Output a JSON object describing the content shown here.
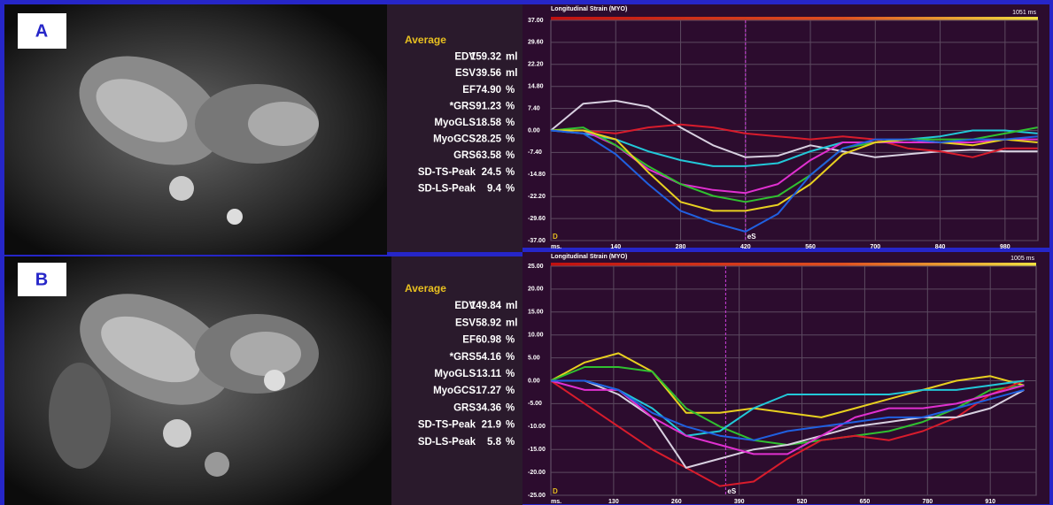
{
  "panels": [
    {
      "label": "A",
      "table": {
        "title": "Average",
        "rows": [
          [
            "EDV",
            "159.32",
            "ml"
          ],
          [
            "ESV",
            "39.56",
            "ml"
          ],
          [
            "EF",
            "74.90",
            "%"
          ],
          [
            "*GRS",
            "91.23",
            "%"
          ],
          [
            "MyoGLS",
            "-18.58",
            "%"
          ],
          [
            "MyoGCS",
            "-28.25",
            "%"
          ],
          [
            "GRS",
            "63.58",
            "%"
          ],
          [
            "SD-TS-Peak",
            "24.5",
            "%"
          ],
          [
            "SD-LS-Peak",
            "9.4",
            "%"
          ]
        ]
      }
    },
    {
      "label": "B",
      "table": {
        "title": "Average",
        "rows": [
          [
            "EDV",
            "149.84",
            "ml"
          ],
          [
            "ESV",
            "58.92",
            "ml"
          ],
          [
            "EF",
            "60.98",
            "%"
          ],
          [
            "*GRS",
            "54.16",
            "%"
          ],
          [
            "MyoGLS",
            "-13.11",
            "%"
          ],
          [
            "MyoGCS",
            "-17.27",
            "%"
          ],
          [
            "GRS",
            "34.36",
            "%"
          ],
          [
            "SD-TS-Peak",
            "21.9",
            "%"
          ],
          [
            "SD-LS-Peak",
            "5.8",
            "%"
          ]
        ]
      }
    }
  ],
  "chart_data": [
    {
      "type": "line",
      "title": "Longitudinal Strain (MYO)",
      "duration_label": "1051 ms",
      "x_unit": "ms.",
      "xlim": [
        0,
        1051
      ],
      "ylim": [
        -37,
        37
      ],
      "xticks": [
        140,
        280,
        420,
        560,
        700,
        840,
        980
      ],
      "yticks": [
        {
          "value": 37,
          "label": "37.00"
        },
        {
          "value": 29.6,
          "label": "29.60"
        },
        {
          "value": 22.2,
          "label": "22.20"
        },
        {
          "value": 14.8,
          "label": "14.80"
        },
        {
          "value": 7.4,
          "label": "7.40"
        },
        {
          "value": 0,
          "label": "0.00"
        },
        {
          "value": -7.4,
          "label": "-7.40"
        },
        {
          "value": -14.8,
          "label": "-14.80"
        },
        {
          "value": -22.2,
          "label": "-22.20"
        },
        {
          "value": -29.6,
          "label": "-29.60"
        },
        {
          "value": -37,
          "label": "-37.00"
        }
      ],
      "grid": true,
      "annotations": [
        {
          "label": "D",
          "x": 0
        },
        {
          "label": "eS",
          "x": 420
        }
      ],
      "x": [
        0,
        70,
        140,
        210,
        280,
        350,
        420,
        490,
        560,
        630,
        700,
        770,
        840,
        910,
        980,
        1050
      ],
      "series": [
        {
          "color": "#d8d0e0",
          "values": [
            0,
            9,
            10,
            8,
            1,
            -5,
            -9,
            -8.5,
            -5,
            -7,
            -9,
            -8,
            -7,
            -6.5,
            -7,
            -7
          ]
        },
        {
          "color": "#d81c2c",
          "values": [
            0,
            0,
            -1,
            1,
            2,
            1,
            -1,
            -2,
            -3,
            -2,
            -3,
            -6,
            -7,
            -9,
            -6,
            -6
          ]
        },
        {
          "color": "#22c8d8",
          "values": [
            0,
            -1,
            -3,
            -7,
            -10,
            -12,
            -12,
            -11,
            -7,
            -4,
            -4,
            -3,
            -2,
            0,
            0,
            -1
          ]
        },
        {
          "color": "#e030d0",
          "values": [
            0,
            0,
            -5,
            -13,
            -18,
            -20,
            -21,
            -18,
            -10,
            -4,
            -4,
            -4,
            -4,
            -4,
            -3,
            -3
          ]
        },
        {
          "color": "#30c030",
          "values": [
            0,
            1,
            -5,
            -12,
            -18,
            -22,
            -24,
            -22,
            -15,
            -6,
            -4,
            -3,
            -3,
            -3,
            -1,
            1
          ]
        },
        {
          "color": "#e8d020",
          "values": [
            0,
            0,
            -3,
            -14,
            -24,
            -27,
            -27,
            -25,
            -18,
            -8,
            -4,
            -3,
            -4,
            -5,
            -3,
            -4
          ]
        },
        {
          "color": "#2060e0",
          "values": [
            0,
            -1,
            -8,
            -18,
            -27,
            -31,
            -34,
            -28,
            -15,
            -6,
            -3,
            -3,
            -4,
            -3,
            -3,
            -2
          ]
        }
      ]
    },
    {
      "type": "line",
      "title": "Longitudinal Strain (MYO)",
      "duration_label": "1005 ms",
      "x_unit": "ms.",
      "xlim": [
        0,
        1005
      ],
      "ylim": [
        -25,
        25
      ],
      "xticks": [
        130,
        260,
        390,
        520,
        650,
        780,
        910
      ],
      "yticks": [
        {
          "value": 25,
          "label": "25.00"
        },
        {
          "value": 20,
          "label": "20.00"
        },
        {
          "value": 15,
          "label": "15.00"
        },
        {
          "value": 10,
          "label": "10.00"
        },
        {
          "value": 5,
          "label": "5.00"
        },
        {
          "value": 0,
          "label": "0.00"
        },
        {
          "value": -5,
          "label": "-5.00"
        },
        {
          "value": -10,
          "label": "-10.00"
        },
        {
          "value": -15,
          "label": "-15.00"
        },
        {
          "value": -20,
          "label": "-20.00"
        },
        {
          "value": -25,
          "label": "-25.00"
        }
      ],
      "grid": true,
      "annotations": [
        {
          "label": "D",
          "x": 0
        },
        {
          "label": "eS",
          "x": 362
        }
      ],
      "x": [
        0,
        70,
        140,
        210,
        280,
        350,
        420,
        490,
        560,
        630,
        700,
        770,
        840,
        910,
        980
      ],
      "series": [
        {
          "color": "#e8d020",
          "values": [
            0,
            4,
            6,
            2,
            -7,
            -7,
            -6,
            -7,
            -8,
            -6,
            -4,
            -2,
            0,
            1,
            -1
          ]
        },
        {
          "color": "#30c030",
          "values": [
            0,
            3,
            3,
            2,
            -6,
            -10,
            -13,
            -14,
            -13,
            -12,
            -11,
            -9,
            -6,
            -2,
            -1
          ]
        },
        {
          "color": "#d81c2c",
          "values": [
            0,
            -5,
            -10,
            -15,
            -19,
            -23,
            -22,
            -17,
            -13,
            -12,
            -13,
            -11,
            -8,
            -3,
            0
          ]
        },
        {
          "color": "#d8d0e0",
          "values": [
            0,
            0,
            -3,
            -8,
            -19,
            -17,
            -15,
            -14,
            -12,
            -10,
            -9,
            -8,
            -8,
            -6,
            -2
          ]
        },
        {
          "color": "#22c8d8",
          "values": [
            0,
            0,
            -2,
            -6,
            -12,
            -11,
            -6,
            -3,
            -3,
            -3,
            -3,
            -2,
            -2,
            -1,
            0
          ]
        },
        {
          "color": "#e030d0",
          "values": [
            0,
            -2,
            -2,
            -8,
            -12,
            -14,
            -16,
            -16,
            -12,
            -8,
            -6,
            -6,
            -5,
            -3,
            -1
          ]
        },
        {
          "color": "#2060e0",
          "values": [
            0,
            0,
            -2,
            -7,
            -10,
            -12,
            -13,
            -11,
            -10,
            -9,
            -8,
            -8,
            -6,
            -4,
            -2
          ]
        }
      ]
    }
  ]
}
